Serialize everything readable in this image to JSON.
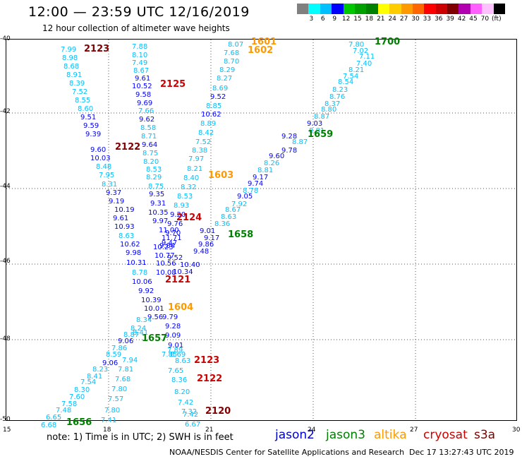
{
  "title": "12:00 — 23:59 UTC 12/16/2019",
  "subtitle": "12 hour collection of altimeter wave heights",
  "colorbar": {
    "colors": [
      "#808080",
      "#00ffff",
      "#00c0ff",
      "#0000ff",
      "#00c800",
      "#00a000",
      "#008000",
      "#ffff00",
      "#ffcc00",
      "#ff9900",
      "#ff6600",
      "#ff0000",
      "#cc0000",
      "#800000",
      "#b000b0",
      "#ff60ff",
      "#ffc0ff",
      "#000000"
    ],
    "labels": [
      "3",
      "6",
      "9",
      "12",
      "15",
      "18",
      "21",
      "24",
      "27",
      "30",
      "33",
      "36",
      "39",
      "42",
      "45",
      "70",
      "(ft)"
    ]
  },
  "axes": {
    "x_ticks": [
      "15",
      "18",
      "21",
      "24",
      "27",
      "30"
    ],
    "y_ticks": [
      "-40",
      "-42",
      "-44",
      "-46",
      "-48",
      "-50"
    ]
  },
  "satellite_colors": {
    "jason2": "#0000cc",
    "jason3": "#008000",
    "altika": "#ff9900",
    "cryosat": "#cc0000",
    "s3a": "#800000"
  },
  "tracks": [
    {
      "time": "2123",
      "color": "#800000",
      "pos": "r"
    },
    {
      "time": "2125",
      "color": "#cc0000",
      "pos": "r"
    },
    {
      "time": "2122",
      "color": "#800000",
      "pos": "r"
    },
    {
      "time": "2124",
      "color": "#cc0000",
      "pos": "r"
    },
    {
      "time": "2121",
      "color": "#cc0000",
      "pos": "r"
    },
    {
      "time": "1604",
      "color": "#ff9900",
      "pos": "r"
    },
    {
      "time": "1657",
      "color": "#008000",
      "pos": "r"
    },
    {
      "time": "1656",
      "color": "#008000",
      "pos": "r"
    },
    {
      "time": "1601",
      "color": "#ff9900",
      "pos": "r"
    },
    {
      "time": "1602",
      "color": "#ff9900",
      "pos": "r"
    },
    {
      "time": "1603",
      "color": "#ff9900",
      "pos": "r"
    },
    {
      "time": "1700",
      "color": "#008000",
      "pos": "r"
    },
    {
      "time": "1659",
      "color": "#008000",
      "pos": "r"
    },
    {
      "time": "1658",
      "color": "#008000",
      "pos": "r"
    },
    {
      "time": "2123",
      "color": "#cc0000",
      "pos": "r"
    },
    {
      "time": "2122",
      "color": "#cc0000",
      "pos": "r"
    },
    {
      "time": "2120",
      "color": "#800000",
      "pos": "r"
    }
  ],
  "obs": [
    [
      "7.99",
      "#00c0ff"
    ],
    [
      "8.98",
      "#00c0ff"
    ],
    [
      "8.68",
      "#00c0ff"
    ],
    [
      "8.91",
      "#00c0ff"
    ],
    [
      "8.39",
      "#00c0ff"
    ],
    [
      "7.52",
      "#00c0ff"
    ],
    [
      "8.55",
      "#00c0ff"
    ],
    [
      "8.60",
      "#00c0ff"
    ],
    [
      "9.51",
      "#0000ff"
    ],
    [
      "9.59",
      "#0000ff"
    ],
    [
      "9.39",
      "#0000ff"
    ],
    [
      "9.60",
      "#0000ff"
    ],
    [
      "10.03",
      "#0000ff"
    ],
    [
      "8.48",
      "#00c0ff"
    ],
    [
      "7.95",
      "#00c0ff"
    ],
    [
      "8.31",
      "#00c0ff"
    ],
    [
      "9.37",
      "#0000ff"
    ],
    [
      "9.19",
      "#0000ff"
    ],
    [
      "10.19",
      "#0000ff"
    ],
    [
      "9.61",
      "#0000ff"
    ],
    [
      "10.93",
      "#0000ff"
    ],
    [
      "8.63",
      "#00c0ff"
    ],
    [
      "10.62",
      "#0000ff"
    ],
    [
      "9.98",
      "#0000ff"
    ],
    [
      "10.31",
      "#0000ff"
    ],
    [
      "7.88",
      "#00c0ff"
    ],
    [
      "8.10",
      "#00c0ff"
    ],
    [
      "7.49",
      "#00c0ff"
    ],
    [
      "8.67",
      "#00c0ff"
    ],
    [
      "9.61",
      "#0000ff"
    ],
    [
      "10.52",
      "#0000ff"
    ],
    [
      "9.58",
      "#0000ff"
    ],
    [
      "9.69",
      "#0000ff"
    ],
    [
      "7.66",
      "#00c0ff"
    ],
    [
      "9.62",
      "#0000ff"
    ],
    [
      "8.58",
      "#00c0ff"
    ],
    [
      "8.71",
      "#00c0ff"
    ],
    [
      "9.64",
      "#0000ff"
    ],
    [
      "8.75",
      "#00c0ff"
    ],
    [
      "8.20",
      "#00c0ff"
    ],
    [
      "8.53",
      "#00c0ff"
    ],
    [
      "8.29",
      "#00c0ff"
    ],
    [
      "8.75",
      "#00c0ff"
    ],
    [
      "9.35",
      "#0000ff"
    ],
    [
      "9.31",
      "#0000ff"
    ],
    [
      "10.35",
      "#0000ff"
    ],
    [
      "9.97",
      "#0000ff"
    ],
    [
      "11.00",
      "#0000ff"
    ],
    [
      "11.71",
      "#0000ff"
    ],
    [
      "10.23",
      "#0000ff"
    ],
    [
      "10.77",
      "#0000ff"
    ],
    [
      "10.56",
      "#0000ff"
    ],
    [
      "10.08",
      "#0000ff"
    ],
    [
      "8.78",
      "#00c0ff"
    ],
    [
      "10.06",
      "#0000ff"
    ],
    [
      "9.92",
      "#0000ff"
    ],
    [
      "10.39",
      "#0000ff"
    ],
    [
      "10.01",
      "#0000ff"
    ],
    [
      "9.56",
      "#0000ff"
    ],
    [
      "9.79",
      "#0000ff"
    ],
    [
      "8.34",
      "#00c0ff"
    ],
    [
      "9.28",
      "#0000ff"
    ],
    [
      "8.24",
      "#00c0ff"
    ],
    [
      "8.41",
      "#00c0ff"
    ],
    [
      "8.87",
      "#00c0ff"
    ],
    [
      "9.09",
      "#0000ff"
    ],
    [
      "9.06",
      "#0000ff"
    ],
    [
      "9.01",
      "#0000ff"
    ],
    [
      "7.86",
      "#00c0ff"
    ],
    [
      "7.85",
      "#00c0ff"
    ],
    [
      "8.69",
      "#00c0ff"
    ],
    [
      "8.59",
      "#00c0ff"
    ],
    [
      "7.94",
      "#00c0ff"
    ],
    [
      "9.06",
      "#0000ff"
    ],
    [
      "8.23",
      "#00c0ff"
    ],
    [
      "7.81",
      "#00c0ff"
    ],
    [
      "8.41",
      "#00c0ff"
    ],
    [
      "7.54",
      "#00c0ff"
    ],
    [
      "7.68",
      "#00c0ff"
    ],
    [
      "8.30",
      "#00c0ff"
    ],
    [
      "7.80",
      "#00c0ff"
    ],
    [
      "7.60",
      "#00c0ff"
    ],
    [
      "7.57",
      "#00c0ff"
    ],
    [
      "7.58",
      "#00c0ff"
    ],
    [
      "7.48",
      "#00c0ff"
    ],
    [
      "7.80",
      "#00c0ff"
    ],
    [
      "6.65",
      "#00c0ff"
    ],
    [
      "7.41",
      "#00c0ff"
    ],
    [
      "6.68",
      "#00c0ff"
    ],
    [
      "8.07",
      "#00c0ff"
    ],
    [
      "7.68",
      "#00c0ff"
    ],
    [
      "8.70",
      "#00c0ff"
    ],
    [
      "8.29",
      "#00c0ff"
    ],
    [
      "8.27",
      "#00c0ff"
    ],
    [
      "8.69",
      "#00c0ff"
    ],
    [
      "9.52",
      "#0000ff"
    ],
    [
      "8.85",
      "#00c0ff"
    ],
    [
      "10.62",
      "#0000ff"
    ],
    [
      "8.89",
      "#00c0ff"
    ],
    [
      "8.42",
      "#00c0ff"
    ],
    [
      "7.52",
      "#00c0ff"
    ],
    [
      "8.38",
      "#00c0ff"
    ],
    [
      "7.97",
      "#00c0ff"
    ],
    [
      "8.21",
      "#00c0ff"
    ],
    [
      "8.40",
      "#00c0ff"
    ],
    [
      "8.32",
      "#00c0ff"
    ],
    [
      "8.53",
      "#00c0ff"
    ],
    [
      "8.93",
      "#00c0ff"
    ],
    [
      "9.20",
      "#0000ff"
    ],
    [
      "9.76",
      "#0000ff"
    ],
    [
      "9.70",
      "#0000ff"
    ],
    [
      "9.47",
      "#0000ff"
    ],
    [
      "9.84",
      "#0000ff"
    ],
    [
      "9.52",
      "#0000ff"
    ],
    [
      "10.40",
      "#0000ff"
    ],
    [
      "10.34",
      "#0000ff"
    ],
    [
      "7.80",
      "#00c0ff"
    ],
    [
      "7.02",
      "#00c0ff"
    ],
    [
      "7.11",
      "#00c0ff"
    ],
    [
      "7.40",
      "#00c0ff"
    ],
    [
      "8.21",
      "#00c0ff"
    ],
    [
      "7.54",
      "#00c0ff"
    ],
    [
      "8.54",
      "#00c0ff"
    ],
    [
      "8.23",
      "#00c0ff"
    ],
    [
      "8.76",
      "#00c0ff"
    ],
    [
      "8.37",
      "#00c0ff"
    ],
    [
      "8.80",
      "#00c0ff"
    ],
    [
      "8.87",
      "#00c0ff"
    ],
    [
      "9.03",
      "#0000ff"
    ],
    [
      "8.81",
      "#00c0ff"
    ],
    [
      "9.28",
      "#0000ff"
    ],
    [
      "8.87",
      "#00c0ff"
    ],
    [
      "9.78",
      "#0000ff"
    ],
    [
      "9.60",
      "#0000ff"
    ],
    [
      "8.26",
      "#00c0ff"
    ],
    [
      "8.81",
      "#00c0ff"
    ],
    [
      "9.17",
      "#0000ff"
    ],
    [
      "9.74",
      "#0000ff"
    ],
    [
      "8.78",
      "#00c0ff"
    ],
    [
      "9.05",
      "#0000ff"
    ],
    [
      "7.92",
      "#00c0ff"
    ],
    [
      "8.67",
      "#00c0ff"
    ],
    [
      "8.63",
      "#00c0ff"
    ],
    [
      "8.36",
      "#00c0ff"
    ],
    [
      "9.01",
      "#0000ff"
    ],
    [
      "9.17",
      "#0000ff"
    ],
    [
      "9.86",
      "#0000ff"
    ],
    [
      "9.48",
      "#0000ff"
    ],
    [
      "7.89",
      "#00c0ff"
    ],
    [
      "8.63",
      "#00c0ff"
    ],
    [
      "7.65",
      "#00c0ff"
    ],
    [
      "8.36",
      "#00c0ff"
    ],
    [
      "8.20",
      "#00c0ff"
    ],
    [
      "7.42",
      "#00c0ff"
    ],
    [
      "7.32",
      "#00c0ff"
    ],
    [
      "7.42",
      "#00c0ff"
    ],
    [
      "6.67",
      "#00c0ff"
    ]
  ],
  "note": "note:  1) Time is in UTC;  2) SWH is in feet",
  "legend": [
    {
      "label": "jason2",
      "color": "#0000cc"
    },
    {
      "label": "jason3",
      "color": "#008000"
    },
    {
      "label": "altika",
      "color": "#ff9900"
    },
    {
      "label": "cryosat",
      "color": "#cc0000"
    },
    {
      "label": "s3a",
      "color": "#800000"
    }
  ],
  "footer": "NOAA/NESDIS Center for Satellite Applications and Research",
  "timestamp": "Dec 17  13:27:43 UTC 2019"
}
